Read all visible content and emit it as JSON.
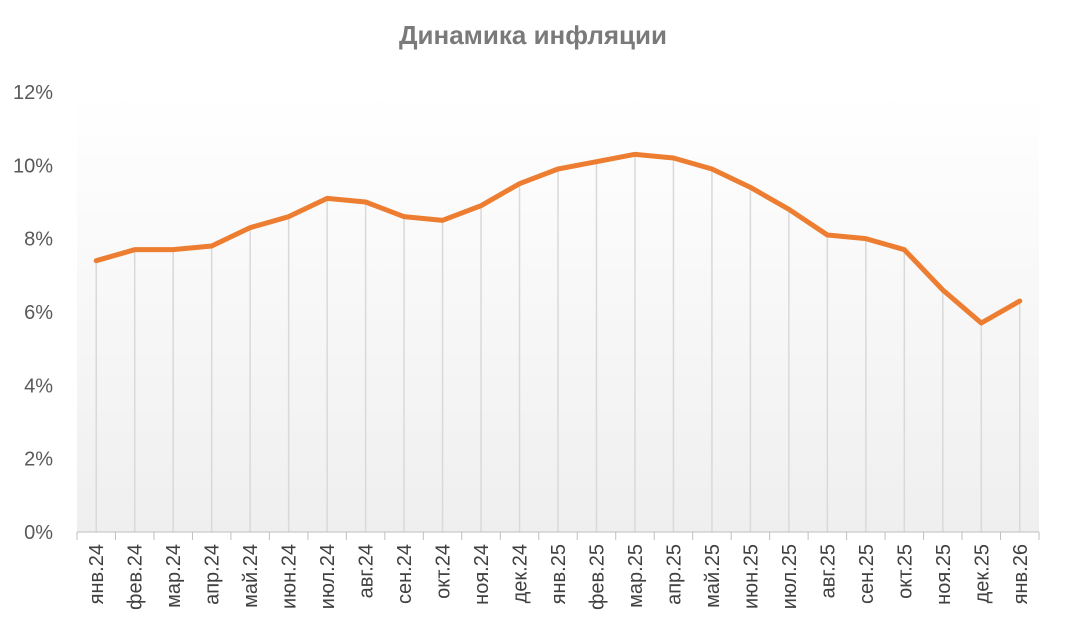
{
  "chart_data": {
    "type": "line",
    "title": "Динамика инфляции",
    "categories": [
      "янв.24",
      "фев.24",
      "мар.24",
      "апр.24",
      "май.24",
      "июн.24",
      "июл.24",
      "авг.24",
      "сен.24",
      "окт.24",
      "ноя.24",
      "дек.24",
      "янв.25",
      "фев.25",
      "мар.25",
      "апр.25",
      "май.25",
      "июн.25",
      "июл.25",
      "авг.25",
      "сен.25",
      "окт.25",
      "ноя.25",
      "дек.25",
      "янв.26"
    ],
    "series": [
      {
        "values": [
          7.4,
          7.7,
          7.7,
          7.8,
          8.3,
          8.6,
          9.1,
          9.0,
          8.6,
          8.5,
          8.9,
          9.5,
          9.9,
          10.1,
          10.3,
          10.2,
          9.9,
          9.4,
          8.8,
          8.1,
          8.0,
          7.7,
          6.6,
          5.7,
          6.3
        ],
        "color": "#ed7d31"
      }
    ],
    "ylim": [
      0,
      12
    ],
    "yticks": [
      "0%",
      "2%",
      "4%",
      "6%",
      "8%",
      "10%",
      "12%"
    ],
    "grid": "vertical drop lines",
    "xlabel": "",
    "ylabel": ""
  }
}
